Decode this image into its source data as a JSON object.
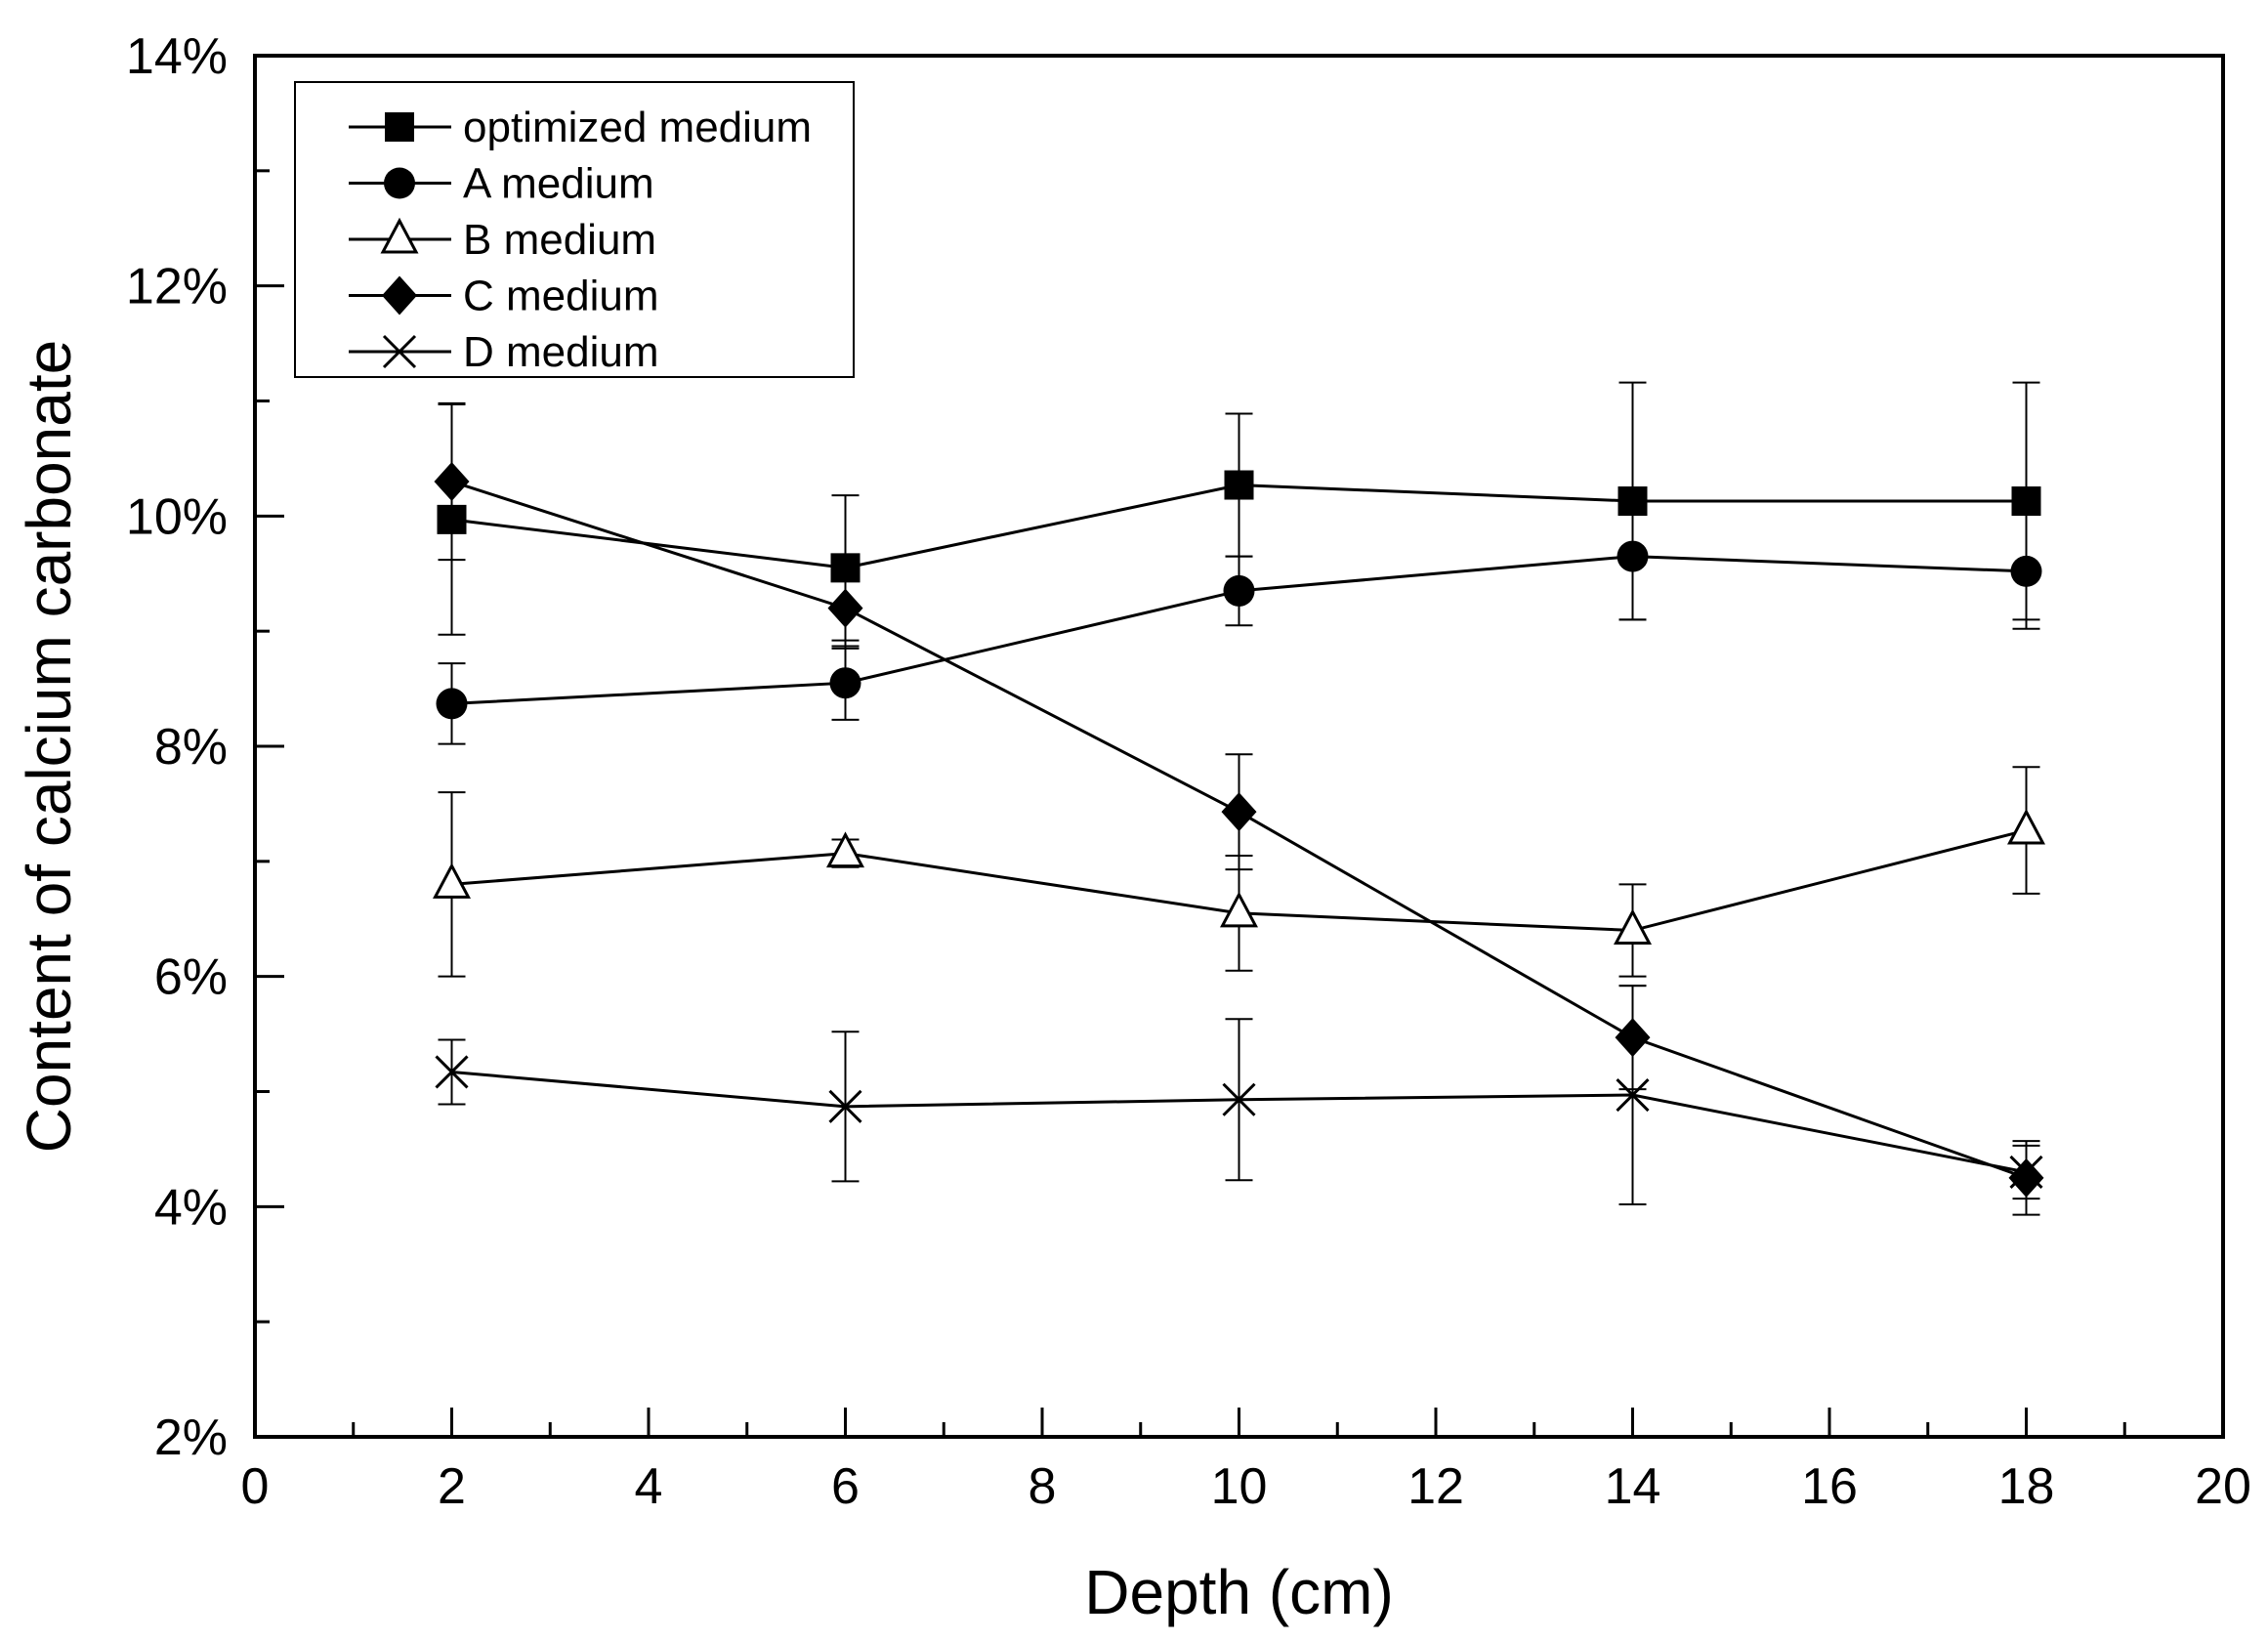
{
  "chart_data": {
    "type": "line",
    "title": "",
    "xlabel": "Depth (cm)",
    "ylabel": "Content of calcium carbonate",
    "xlim": [
      0,
      20
    ],
    "ylim": [
      2,
      14
    ],
    "x_ticks": [
      0,
      2,
      4,
      6,
      8,
      10,
      12,
      14,
      16,
      18,
      20
    ],
    "x_tick_labels": [
      "0",
      "2",
      "4",
      "6",
      "8",
      "10",
      "12",
      "14",
      "16",
      "18",
      "20"
    ],
    "y_ticks": [
      2,
      4,
      6,
      8,
      10,
      12,
      14
    ],
    "y_tick_labels": [
      "2%",
      "4%",
      "6%",
      "8%",
      "10%",
      "12%",
      "14%"
    ],
    "grid": false,
    "legend_position": "top-left",
    "x": [
      2,
      6,
      10,
      14,
      18
    ],
    "series": [
      {
        "name": "optimized medium",
        "marker": "filled-square",
        "values": [
          9.97,
          9.55,
          10.27,
          10.13,
          10.13
        ],
        "errors": [
          1.0,
          0.63,
          0.62,
          1.03,
          1.03
        ]
      },
      {
        "name": "A medium",
        "marker": "filled-circle",
        "values": [
          8.37,
          8.55,
          9.35,
          9.65,
          9.52
        ],
        "errors": [
          0.35,
          0.32,
          0.3,
          0.55,
          0.5
        ]
      },
      {
        "name": "B medium",
        "marker": "open-triangle",
        "values": [
          6.8,
          7.07,
          6.55,
          6.4,
          7.27
        ],
        "errors": [
          0.8,
          0.12,
          0.5,
          0.4,
          0.55
        ]
      },
      {
        "name": "C medium",
        "marker": "filled-diamond",
        "values": [
          10.3,
          9.2,
          7.43,
          5.47,
          4.25
        ],
        "errors": [
          0.68,
          0.35,
          0.5,
          0.45,
          0.32
        ]
      },
      {
        "name": "D medium",
        "marker": "cross",
        "values": [
          5.17,
          4.87,
          4.93,
          4.97,
          4.3
        ],
        "errors": [
          0.28,
          0.65,
          0.7,
          0.95,
          0.23
        ]
      }
    ]
  }
}
